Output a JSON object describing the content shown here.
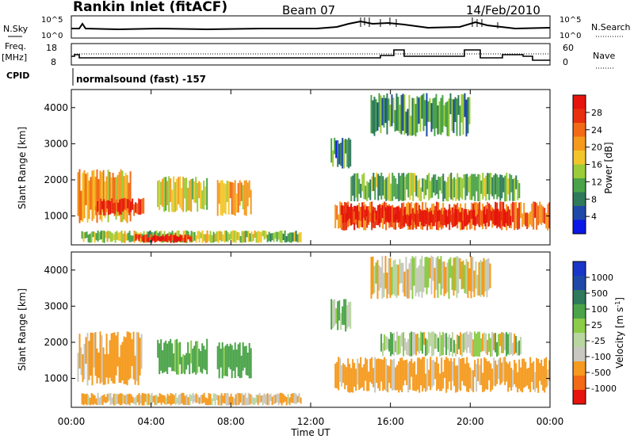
{
  "header": {
    "station": "Rankin Inlet (fitACF)",
    "beam": "Beam 07",
    "date": "14/Feb/2010"
  },
  "top_panel": {
    "noise_label": "N.Sky",
    "noise_ticks": [
      "10^5",
      "10^0"
    ],
    "search_label": "N.Search",
    "search_ticks": [
      "10^5",
      "10^0"
    ],
    "freq_label_1": "Freq.",
    "freq_label_2": "[MHz]",
    "freq_ticks": [
      "18",
      "8"
    ],
    "nave_label": "Nave",
    "nave_ticks": [
      "60",
      "0"
    ],
    "cpid_label": "CPID",
    "cpid_text": "normalsound (fast) -157"
  },
  "x_axis": {
    "label": "Time UT",
    "ticks": [
      "00:00",
      "04:00",
      "08:00",
      "12:00",
      "16:00",
      "20:00",
      "00:00"
    ]
  },
  "colors": {
    "power_scale": [
      "#0a17e6",
      "#1f49a8",
      "#2f7a5a",
      "#4aa348",
      "#9ccb3a",
      "#f2c62b",
      "#f59a1e",
      "#f26a16",
      "#e8300e",
      "#e6140c"
    ],
    "velocity_scale": [
      "#e6140c",
      "#f26a16",
      "#f59a1e",
      "#c8c8c0",
      "#b9d6a0",
      "#8ccc48",
      "#4aa348",
      "#2f7a5a",
      "#1f49a8",
      "#1a36c8"
    ]
  },
  "chart_data": [
    {
      "type": "heatmap",
      "title": "Power",
      "xlabel": "Time UT",
      "ylabel": "Slant Range [km]",
      "colorbar_label": "Power [dB]",
      "colorbar_ticks": [
        "28",
        "24",
        "20",
        "16",
        "12",
        "8",
        "4"
      ],
      "xlim": [
        0,
        24
      ],
      "ylim": [
        200,
        4500
      ],
      "yticks": [
        "4000",
        "3000",
        "2000",
        "1000"
      ],
      "yvals": [
        4000,
        3000,
        2000,
        1000
      ],
      "regions": [
        {
          "t0": 0.3,
          "t1": 3.0,
          "r0": 800,
          "r1": 2300,
          "level": 20
        },
        {
          "t0": 1.2,
          "t1": 3.6,
          "r0": 1000,
          "r1": 1500,
          "level": 26
        },
        {
          "t0": 4.3,
          "t1": 6.8,
          "r0": 1100,
          "r1": 2100,
          "level": 16
        },
        {
          "t0": 7.3,
          "t1": 9.0,
          "r0": 1000,
          "r1": 2000,
          "level": 18
        },
        {
          "t0": 0.5,
          "t1": 11.5,
          "r0": 250,
          "r1": 600,
          "level": 14
        },
        {
          "t0": 3.2,
          "t1": 6.0,
          "r0": 250,
          "r1": 500,
          "level": 28
        },
        {
          "t0": 13.2,
          "t1": 24.0,
          "r0": 600,
          "r1": 1400,
          "level": 24
        },
        {
          "t0": 13.5,
          "t1": 16.5,
          "r0": 800,
          "r1": 1300,
          "level": 28
        },
        {
          "t0": 16.5,
          "t1": 22.0,
          "r0": 700,
          "r1": 1200,
          "level": 29
        },
        {
          "t0": 14.0,
          "t1": 22.5,
          "r0": 1400,
          "r1": 2200,
          "level": 12
        },
        {
          "t0": 13.0,
          "t1": 14.0,
          "r0": 2300,
          "r1": 3200,
          "level": 8
        },
        {
          "t0": 15.0,
          "t1": 20.0,
          "r0": 3200,
          "r1": 4400,
          "level": 10
        }
      ]
    },
    {
      "type": "heatmap",
      "title": "Velocity",
      "xlabel": "Time UT",
      "ylabel": "Slant Range [km]",
      "colorbar_label": "Velocity [m s^-1]",
      "colorbar_ticks": [
        "1000",
        "500",
        "100",
        "25",
        "-25",
        "-100",
        "-500",
        "-1000"
      ],
      "xlim": [
        0,
        24
      ],
      "ylim": [
        200,
        4500
      ],
      "yticks": [
        "4000",
        "3000",
        "2000",
        "1000"
      ],
      "yvals": [
        4000,
        3000,
        2000,
        1000
      ],
      "regions": [
        {
          "t0": 0.3,
          "t1": 3.5,
          "r0": 800,
          "r1": 2300,
          "level": -180
        },
        {
          "t0": 4.3,
          "t1": 6.8,
          "r0": 1100,
          "r1": 2100,
          "level": 200
        },
        {
          "t0": 7.3,
          "t1": 9.0,
          "r0": 1000,
          "r1": 2000,
          "level": 200
        },
        {
          "t0": 0.5,
          "t1": 11.5,
          "r0": 250,
          "r1": 600,
          "level": -110
        },
        {
          "t0": 13.2,
          "t1": 24.0,
          "r0": 600,
          "r1": 1600,
          "level": -200
        },
        {
          "t0": 15.5,
          "t1": 22.5,
          "r0": 1600,
          "r1": 2300,
          "level": 0
        },
        {
          "t0": 13.0,
          "t1": 14.0,
          "r0": 2300,
          "r1": 3200,
          "level": 50
        },
        {
          "t0": 15.0,
          "t1": 21.0,
          "r0": 3200,
          "r1": 4400,
          "level": -60
        }
      ]
    }
  ]
}
